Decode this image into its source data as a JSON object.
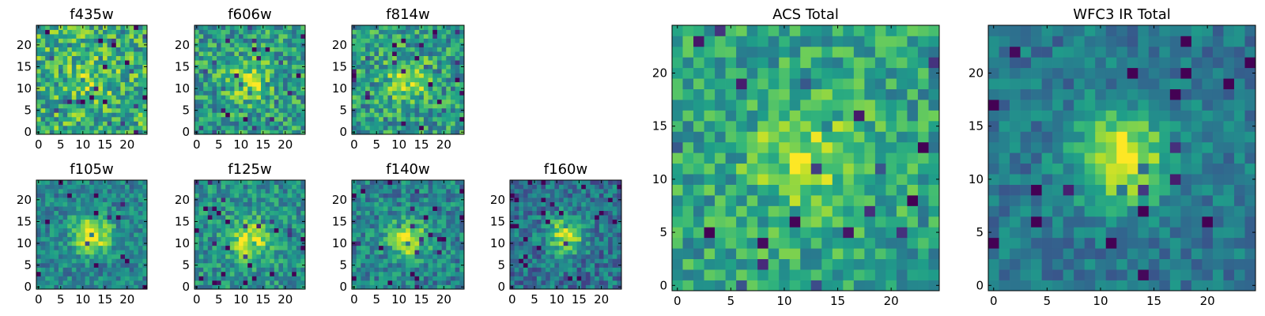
{
  "chart_data": [
    {
      "type": "heatmap",
      "name": "f435w",
      "title": "f435w",
      "image_size": 25,
      "xlim": [
        -0.5,
        24.5
      ],
      "ylim": [
        -0.5,
        24.5
      ],
      "x_ticks": [
        0,
        5,
        10,
        15,
        20
      ],
      "y_ticks": [
        0,
        5,
        10,
        15,
        20
      ],
      "colormap": "viridis",
      "source_center": [
        12,
        12
      ],
      "peak_sigma": 4.0,
      "peak_strength": 0.15,
      "base_level": 0.62,
      "noise_level": 0.55,
      "seed": 11
    },
    {
      "type": "heatmap",
      "name": "f606w",
      "title": "f606w",
      "image_size": 25,
      "xlim": [
        -0.5,
        24.5
      ],
      "ylim": [
        -0.5,
        24.5
      ],
      "x_ticks": [
        0,
        5,
        10,
        15,
        20
      ],
      "y_ticks": [
        0,
        5,
        10,
        15,
        20
      ],
      "colormap": "viridis",
      "source_center": [
        12,
        12
      ],
      "peak_sigma": 3.5,
      "peak_strength": 0.3,
      "base_level": 0.55,
      "noise_level": 0.5,
      "seed": 23
    },
    {
      "type": "heatmap",
      "name": "f814w",
      "title": "f814w",
      "image_size": 25,
      "xlim": [
        -0.5,
        24.5
      ],
      "ylim": [
        -0.5,
        24.5
      ],
      "x_ticks": [
        0,
        5,
        10,
        15,
        20
      ],
      "y_ticks": [
        0,
        5,
        10,
        15,
        20
      ],
      "colormap": "viridis",
      "source_center": [
        12,
        12
      ],
      "peak_sigma": 3.2,
      "peak_strength": 0.35,
      "base_level": 0.55,
      "noise_level": 0.5,
      "seed": 37
    },
    {
      "type": "heatmap",
      "name": "f105w",
      "title": "f105w",
      "image_size": 25,
      "xlim": [
        -0.5,
        24.5
      ],
      "ylim": [
        -0.5,
        24.5
      ],
      "x_ticks": [
        0,
        5,
        10,
        15,
        20
      ],
      "y_ticks": [
        0,
        5,
        10,
        15,
        20
      ],
      "colormap": "viridis",
      "source_center": [
        12,
        12
      ],
      "peak_sigma": 3.0,
      "peak_strength": 0.55,
      "base_level": 0.45,
      "noise_level": 0.35,
      "seed": 41
    },
    {
      "type": "heatmap",
      "name": "f125w",
      "title": "f125w",
      "image_size": 25,
      "xlim": [
        -0.5,
        24.5
      ],
      "ylim": [
        -0.5,
        24.5
      ],
      "x_ticks": [
        0,
        5,
        10,
        15,
        20
      ],
      "y_ticks": [
        0,
        5,
        10,
        15,
        20
      ],
      "colormap": "viridis",
      "source_center": [
        12,
        11
      ],
      "peak_sigma": 3.2,
      "peak_strength": 0.45,
      "base_level": 0.5,
      "noise_level": 0.4,
      "seed": 53
    },
    {
      "type": "heatmap",
      "name": "f140w",
      "title": "f140w",
      "image_size": 25,
      "xlim": [
        -0.5,
        24.5
      ],
      "ylim": [
        -0.5,
        24.5
      ],
      "x_ticks": [
        0,
        5,
        10,
        15,
        20
      ],
      "y_ticks": [
        0,
        5,
        10,
        15,
        20
      ],
      "colormap": "viridis",
      "source_center": [
        12,
        11
      ],
      "peak_sigma": 3.0,
      "peak_strength": 0.5,
      "base_level": 0.45,
      "noise_level": 0.4,
      "seed": 67
    },
    {
      "type": "heatmap",
      "name": "f160w",
      "title": "f160w",
      "image_size": 25,
      "xlim": [
        -0.5,
        24.5
      ],
      "ylim": [
        -0.5,
        24.5
      ],
      "x_ticks": [
        0,
        5,
        10,
        15,
        20
      ],
      "y_ticks": [
        0,
        5,
        10,
        15,
        20
      ],
      "colormap": "viridis",
      "source_center": [
        12,
        12
      ],
      "peak_sigma": 2.8,
      "peak_strength": 0.55,
      "base_level": 0.38,
      "noise_level": 0.4,
      "seed": 79
    },
    {
      "type": "heatmap",
      "name": "acs-total",
      "title": "ACS Total",
      "image_size": 25,
      "xlim": [
        -0.5,
        24.5
      ],
      "ylim": [
        -0.5,
        24.5
      ],
      "x_ticks": [
        0,
        5,
        10,
        15,
        20
      ],
      "y_ticks": [
        0,
        5,
        10,
        15,
        20
      ],
      "colormap": "viridis",
      "source_center": [
        12,
        12
      ],
      "peak_sigma": 3.5,
      "peak_strength": 0.3,
      "base_level": 0.58,
      "noise_level": 0.42,
      "seed": 97
    },
    {
      "type": "heatmap",
      "name": "wfc3-ir-total",
      "title": "WFC3 IR Total",
      "image_size": 25,
      "xlim": [
        -0.5,
        24.5
      ],
      "ylim": [
        -0.5,
        24.5
      ],
      "x_ticks": [
        0,
        5,
        10,
        15,
        20
      ],
      "y_ticks": [
        0,
        5,
        10,
        15,
        20
      ],
      "colormap": "viridis",
      "source_center": [
        12,
        12
      ],
      "peak_sigma": 3.0,
      "peak_strength": 0.6,
      "base_level": 0.4,
      "noise_level": 0.28,
      "seed": 113
    }
  ],
  "colors": {
    "viridis": [
      "#440154",
      "#482878",
      "#3e4989",
      "#31688e",
      "#26828e",
      "#1f9e89",
      "#35b779",
      "#6ece58",
      "#b5de2b",
      "#fde725"
    ]
  }
}
